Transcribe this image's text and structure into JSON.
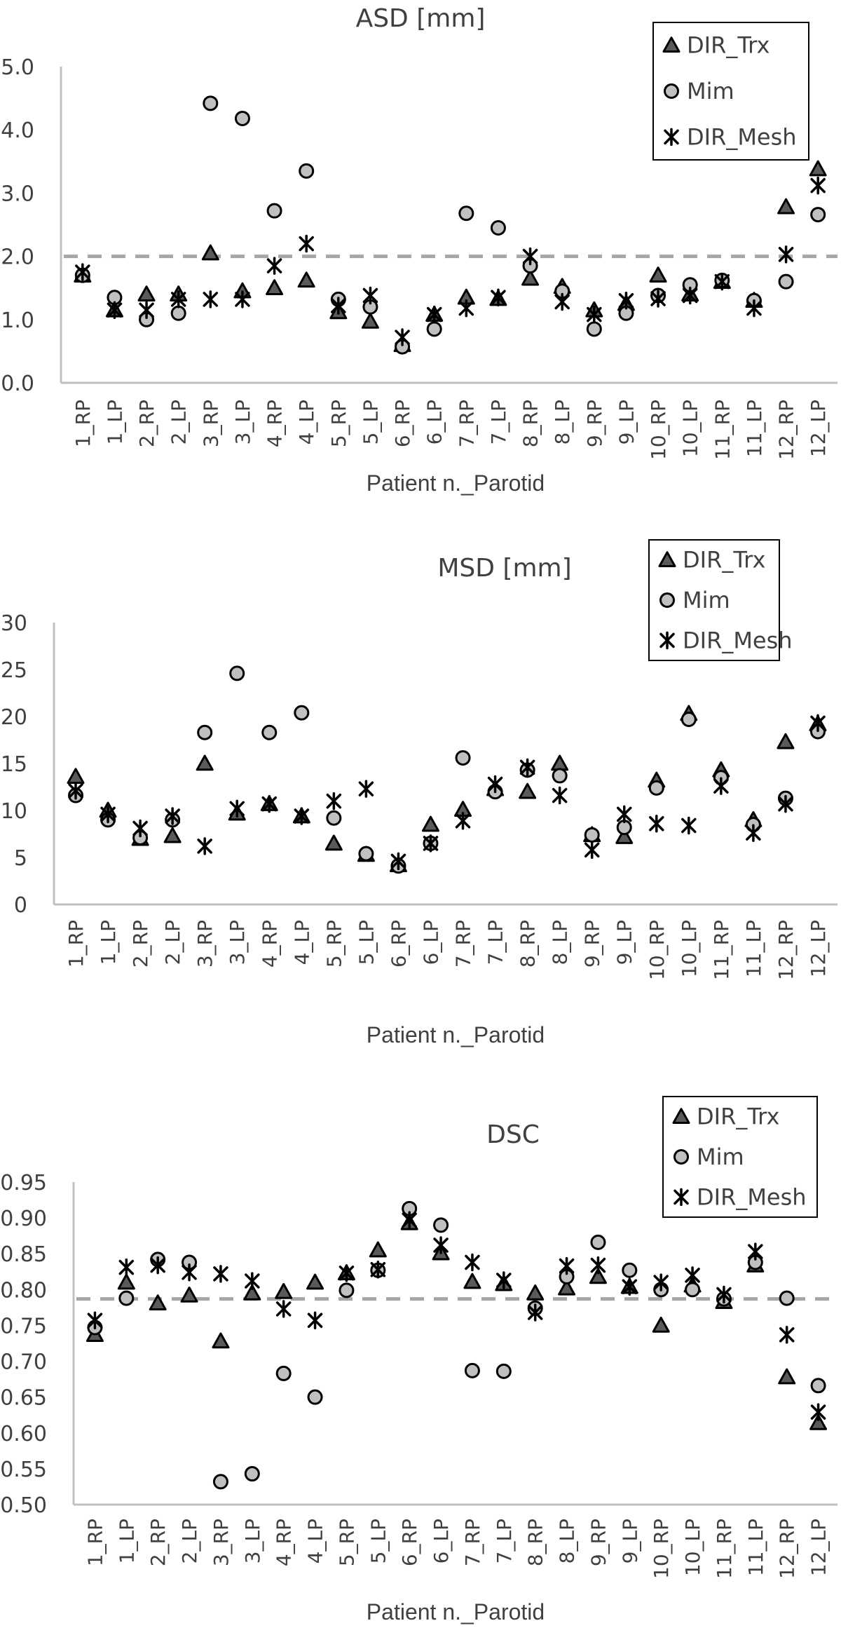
{
  "colors": {
    "trx_fill": "#5a5a5a",
    "mim_fill": "#c0c0c0",
    "marker_stroke": "#000000",
    "axis": "#bfbfbf",
    "dashed_ref": "#a6a6a6",
    "text": "#404040"
  },
  "legend": {
    "entries": [
      {
        "name": "DIR_Trx",
        "marker": "triangle"
      },
      {
        "name": "Mim",
        "marker": "circle"
      },
      {
        "name": "DIR_Mesh",
        "marker": "asterisk"
      }
    ]
  },
  "chart_data": [
    {
      "type": "scatter",
      "title": "ASD [mm]",
      "xlabel": "Patient n._Parotid",
      "ylabel": "",
      "ylim": [
        0,
        5
      ],
      "yticks": [
        "0.0",
        "1.0",
        "2.0",
        "3.0",
        "4.0",
        "5.0"
      ],
      "ytick_values": [
        0,
        1,
        2,
        3,
        4,
        5
      ],
      "grid": false,
      "legend_position": "top-right",
      "reference_line": 2.0,
      "categories": [
        "1_RP",
        "1_LP",
        "2_RP",
        "2_LP",
        "3_RP",
        "3_LP",
        "4_RP",
        "4_LP",
        "5_RP",
        "5_LP",
        "6_RP",
        "6_LP",
        "7_RP",
        "7_LP",
        "8_RP",
        "8_LP",
        "9_RP",
        "9_LP",
        "10_RP",
        "10_LP",
        "11_RP",
        "11_LP",
        "12_RP",
        "12_LP"
      ],
      "series": [
        {
          "name": "DIR_Trx",
          "values": [
            1.7,
            1.15,
            1.4,
            1.4,
            2.05,
            1.45,
            1.5,
            1.62,
            1.12,
            0.97,
            0.6,
            1.08,
            1.35,
            1.33,
            1.65,
            1.52,
            1.15,
            1.25,
            1.7,
            1.4,
            1.6,
            1.3,
            2.78,
            3.38
          ]
        },
        {
          "name": "Mim",
          "values": [
            1.7,
            1.35,
            1.0,
            1.1,
            4.42,
            4.18,
            2.72,
            3.35,
            1.32,
            1.2,
            0.57,
            0.85,
            2.68,
            2.45,
            1.85,
            1.45,
            0.85,
            1.1,
            1.38,
            1.55,
            1.62,
            1.3,
            1.6,
            2.66
          ]
        },
        {
          "name": "DIR_Mesh",
          "values": [
            1.75,
            1.15,
            1.15,
            1.32,
            1.32,
            1.32,
            1.85,
            2.2,
            1.22,
            1.38,
            0.72,
            1.08,
            1.18,
            1.35,
            2.0,
            1.28,
            1.08,
            1.3,
            1.33,
            1.38,
            1.6,
            1.18,
            2.03,
            3.12
          ]
        }
      ]
    },
    {
      "type": "scatter",
      "title": "MSD [mm]",
      "xlabel": "Patient n._Parotid",
      "ylabel": "",
      "ylim": [
        0,
        30
      ],
      "yticks": [
        "0",
        "5",
        "10",
        "15",
        "20",
        "25",
        "30"
      ],
      "ytick_values": [
        0,
        5,
        10,
        15,
        20,
        25,
        30
      ],
      "grid": false,
      "legend_position": "top-right",
      "categories": [
        "1_RP",
        "1_LP",
        "2_RP",
        "2_LP",
        "3_RP",
        "3_LP",
        "4_RP",
        "4_LP",
        "5_RP",
        "5_LP",
        "6_RP",
        "6_LP",
        "7_RP",
        "7_LP",
        "8_RP",
        "8_LP",
        "9_RP",
        "9_LP",
        "10_RP",
        "10_LP",
        "11_RP",
        "11_LP",
        "12_RP",
        "12_LP"
      ],
      "series": [
        {
          "name": "DIR_Trx",
          "values": [
            13.6,
            10.0,
            7.0,
            7.3,
            15.0,
            9.7,
            10.7,
            9.4,
            6.5,
            5.3,
            4.2,
            8.5,
            10.1,
            12.3,
            12.0,
            15.0,
            7.4,
            7.2,
            13.2,
            20.3,
            14.3,
            9.0,
            17.3,
            19.2
          ]
        },
        {
          "name": "Mim",
          "values": [
            11.6,
            9.0,
            7.1,
            9.0,
            18.3,
            24.6,
            18.3,
            20.4,
            9.2,
            5.4,
            4.1,
            6.5,
            15.6,
            12.0,
            14.3,
            13.7,
            7.4,
            8.2,
            12.4,
            19.7,
            13.5,
            8.5,
            11.3,
            18.4
          ]
        },
        {
          "name": "DIR_Mesh",
          "values": [
            12.1,
            9.6,
            8.1,
            9.4,
            6.2,
            10.2,
            10.7,
            9.4,
            11.0,
            12.3,
            4.6,
            6.5,
            8.9,
            12.8,
            14.6,
            11.6,
            5.8,
            9.6,
            8.6,
            8.4,
            12.6,
            7.6,
            10.7,
            19.3
          ]
        }
      ]
    },
    {
      "type": "scatter",
      "title": "DSC",
      "xlabel": "Patient n._Parotid",
      "ylabel": "",
      "ylim": [
        0.5,
        0.95
      ],
      "yticks": [
        "0.50",
        "0.55",
        "0.60",
        "0.65",
        "0.70",
        "0.75",
        "0.80",
        "0.85",
        "0.90",
        "0.95"
      ],
      "ytick_values": [
        0.5,
        0.55,
        0.6,
        0.65,
        0.7,
        0.75,
        0.8,
        0.85,
        0.9,
        0.95
      ],
      "grid": false,
      "legend_position": "top-right",
      "reference_line": 0.787,
      "categories": [
        "1_RP",
        "1_LP",
        "2_RP",
        "2_LP",
        "3_RP",
        "3_LP",
        "4_RP",
        "4_LP",
        "5_RP",
        "5_LP",
        "6_RP",
        "6_LP",
        "7_RP",
        "7_LP",
        "8_RP",
        "8_LP",
        "9_RP",
        "9_LP",
        "10_RP",
        "10_LP",
        "11_RP",
        "11_LP",
        "12_RP",
        "12_LP"
      ],
      "series": [
        {
          "name": "DIR_Trx",
          "values": [
            0.737,
            0.81,
            0.781,
            0.792,
            0.728,
            0.795,
            0.797,
            0.81,
            0.823,
            0.855,
            0.893,
            0.851,
            0.811,
            0.808,
            0.795,
            0.802,
            0.818,
            0.804,
            0.75,
            0.806,
            0.783,
            0.834,
            0.678,
            0.614
          ]
        },
        {
          "name": "Mim",
          "values": [
            0.747,
            0.788,
            0.842,
            0.838,
            0.532,
            0.543,
            0.683,
            0.65,
            0.799,
            0.827,
            0.913,
            0.89,
            0.687,
            0.686,
            0.774,
            0.818,
            0.866,
            0.827,
            0.8,
            0.8,
            0.787,
            0.838,
            0.788,
            0.666
          ]
        },
        {
          "name": "DIR_Mesh",
          "values": [
            0.757,
            0.831,
            0.834,
            0.824,
            0.822,
            0.812,
            0.773,
            0.757,
            0.823,
            0.828,
            0.897,
            0.862,
            0.838,
            0.813,
            0.768,
            0.833,
            0.834,
            0.804,
            0.81,
            0.82,
            0.793,
            0.853,
            0.737,
            0.629
          ]
        }
      ]
    }
  ]
}
